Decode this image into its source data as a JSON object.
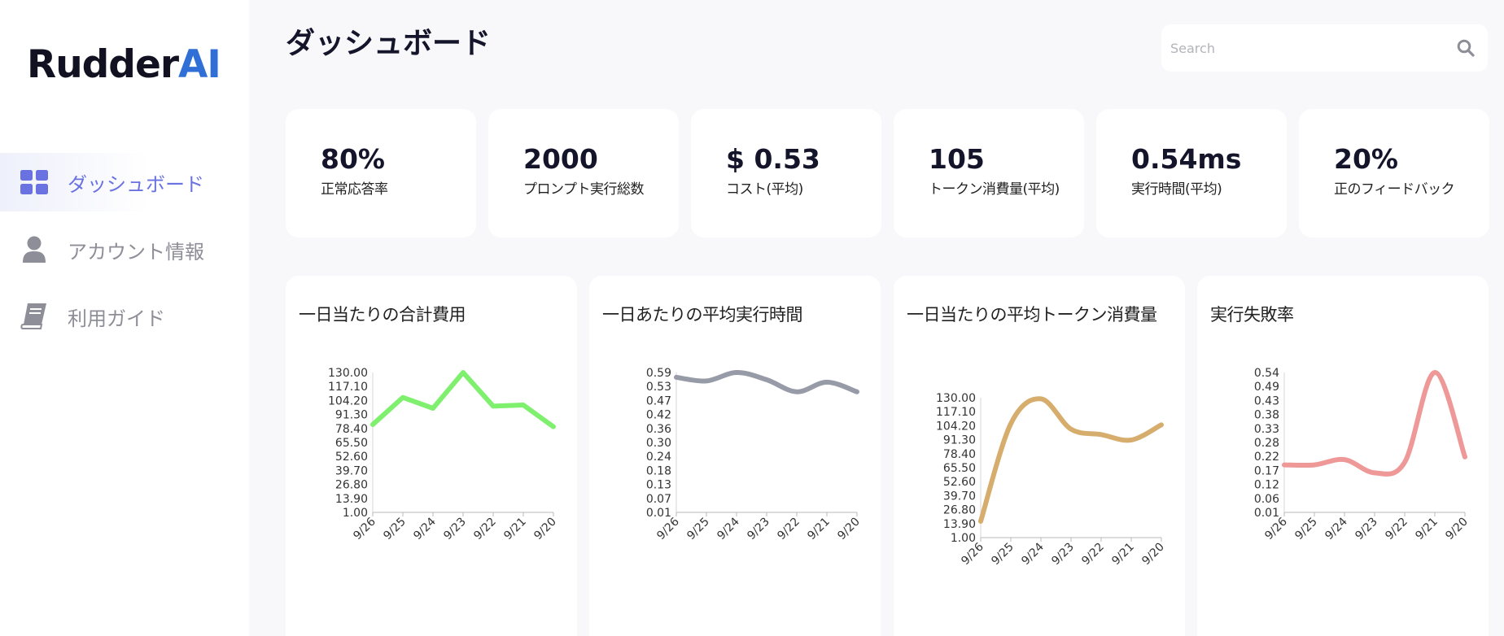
{
  "sidebar": {
    "logo_main": "Rudder",
    "logo_accent": "AI",
    "items": [
      {
        "label": "ダッシュボード",
        "icon": "dashboard-grid-icon",
        "active": true
      },
      {
        "label": "アカウント情報",
        "icon": "user-icon",
        "active": false
      },
      {
        "label": "利用ガイド",
        "icon": "book-icon",
        "active": false
      }
    ]
  },
  "header": {
    "title": "ダッシュボード",
    "search_placeholder": "Search",
    "search_icon": "search-icon"
  },
  "stats": [
    {
      "value": "80%",
      "label": "正常応答率"
    },
    {
      "value": "2000",
      "label": "プロンプト実行総数"
    },
    {
      "value": "$ 0.53",
      "label": "コスト(平均)"
    },
    {
      "value": "105",
      "label": "トークン消費量(平均)"
    },
    {
      "value": "0.54ms",
      "label": "実行時間(平均)"
    },
    {
      "value": "20%",
      "label": "正のフィードバック"
    }
  ],
  "colors": {
    "accent": "#6972e0",
    "logo_ai": "#2f6fd6",
    "cost_line": "#7ef06e",
    "time_line": "#979ba8",
    "token_line": "#d6ad6c",
    "failure_line": "#ee9898"
  },
  "chart_data": [
    {
      "type": "line",
      "title": "一日当たりの合計費用",
      "categories": [
        "9/26",
        "9/25",
        "9/24",
        "9/23",
        "9/22",
        "9/21",
        "9/20"
      ],
      "y_ticks": [
        "130.00",
        "117.10",
        "104.20",
        "91.30",
        "78.40",
        "65.50",
        "52.60",
        "39.70",
        "26.80",
        "13.90",
        "1.00"
      ],
      "ylim": [
        1,
        130
      ],
      "series": [
        {
          "values": [
            82,
            107,
            97,
            130,
            99,
            100,
            80
          ]
        }
      ],
      "curve": "linear",
      "color": "#7ef06e"
    },
    {
      "type": "line",
      "title": "一日あたりの平均実行時間",
      "categories": [
        "9/26",
        "9/25",
        "9/24",
        "9/23",
        "9/22",
        "9/21",
        "9/20"
      ],
      "y_ticks": [
        "0.59",
        "0.53",
        "0.47",
        "0.42",
        "0.36",
        "0.30",
        "0.24",
        "0.18",
        "0.13",
        "0.07",
        "0.01"
      ],
      "ylim": [
        0.01,
        0.59
      ],
      "series": [
        {
          "values": [
            0.57,
            0.555,
            0.59,
            0.56,
            0.51,
            0.55,
            0.51
          ]
        }
      ],
      "curve": "smooth",
      "color": "#979ba8"
    },
    {
      "type": "line",
      "title": "一日当たりの平均トークン消費量",
      "categories": [
        "9/26",
        "9/25",
        "9/24",
        "9/23",
        "9/22",
        "9/21",
        "9/20"
      ],
      "y_ticks": [
        "130.00",
        "117.10",
        "104.20",
        "91.30",
        "78.40",
        "65.50",
        "52.60",
        "39.70",
        "26.80",
        "13.90",
        "1.00"
      ],
      "ylim": [
        1,
        130
      ],
      "series": [
        {
          "values": [
            16,
            106,
            129,
            101,
            96,
            91,
            105
          ]
        }
      ],
      "curve": "smooth",
      "color": "#d6ad6c"
    },
    {
      "type": "line",
      "title": "実行失敗率",
      "categories": [
        "9/26",
        "9/25",
        "9/24",
        "9/23",
        "9/22",
        "9/21",
        "9/20"
      ],
      "y_ticks": [
        "0.54",
        "0.49",
        "0.43",
        "0.38",
        "0.33",
        "0.28",
        "0.22",
        "0.17",
        "0.12",
        "0.06",
        "0.01"
      ],
      "ylim": [
        0.01,
        0.54
      ],
      "series": [
        {
          "values": [
            0.19,
            0.19,
            0.21,
            0.16,
            0.2,
            0.54,
            0.22
          ]
        }
      ],
      "curve": "smooth",
      "color": "#ee9898"
    }
  ]
}
